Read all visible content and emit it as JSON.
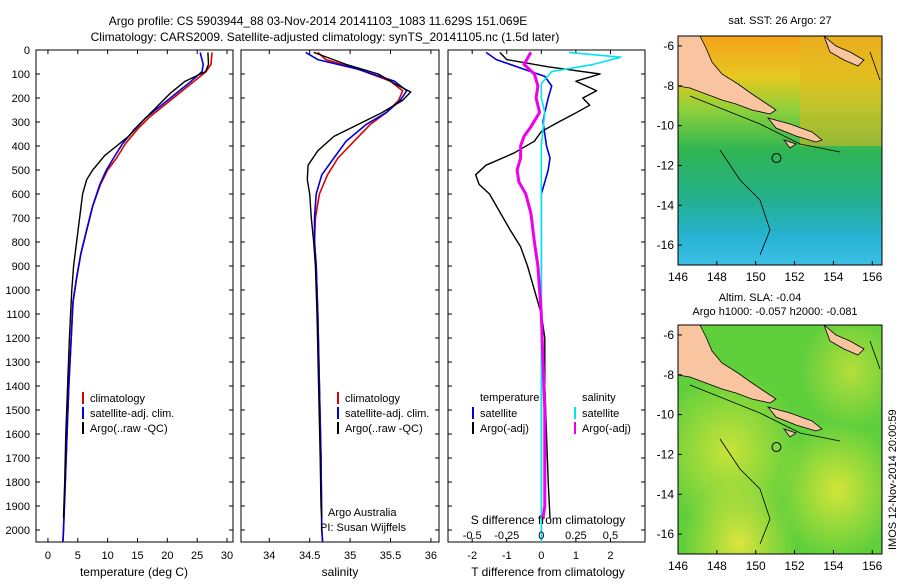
{
  "title": {
    "line1": "Argo profile: CS 5903944_88 03-Nov-2014 20141103_1083 11.629S 151.069E",
    "line2": "Climatology: CARS2009. Satellite-adjusted climatology: synTS_20141105.nc (1.5d later)"
  },
  "colors": {
    "clim": "#dd0000",
    "sat": "#0000dd",
    "argo": "#000000",
    "sal_sat": "#00e5ee",
    "sal_argo": "#ee00ee"
  },
  "depth_axis": {
    "ticks": [
      0,
      100,
      200,
      300,
      400,
      500,
      600,
      700,
      800,
      900,
      1000,
      1100,
      1200,
      1300,
      1400,
      1500,
      1600,
      1700,
      1800,
      1900,
      2000
    ],
    "range": [
      0,
      2050
    ]
  },
  "chart_data": [
    {
      "type": "line",
      "name": "temperature",
      "xlabel": "temperature (deg C)",
      "ylabel": "depth",
      "xlim": [
        -2,
        31
      ],
      "xticks": [
        0,
        5,
        10,
        15,
        20,
        25,
        30
      ],
      "legend": [
        "climatology",
        "satellite-adj. clim.",
        "Argo(..raw -QC)"
      ],
      "series": [
        {
          "name": "climatology",
          "color": "clim",
          "width": 1.6,
          "points": [
            [
              27.5,
              10
            ],
            [
              27.3,
              60
            ],
            [
              26.5,
              90
            ],
            [
              24.5,
              130
            ],
            [
              22,
              180
            ],
            [
              19.5,
              230
            ],
            [
              17,
              280
            ],
            [
              15,
              330
            ],
            [
              13,
              390
            ],
            [
              11.5,
              450
            ],
            [
              10,
              500
            ],
            [
              8.8,
              560
            ],
            [
              7.5,
              650
            ],
            [
              6.5,
              750
            ],
            [
              5.5,
              850
            ],
            [
              4.8,
              950
            ],
            [
              4.2,
              1050
            ],
            [
              3.9,
              1200
            ],
            [
              3.5,
              1400
            ],
            [
              3.2,
              1600
            ],
            [
              2.9,
              1800
            ],
            [
              2.6,
              2000
            ],
            [
              2.5,
              2050
            ]
          ]
        },
        {
          "name": "satellite-adj. clim.",
          "color": "sat",
          "width": 1.6,
          "points": [
            [
              25.5,
              10
            ],
            [
              26,
              60
            ],
            [
              25.8,
              90
            ],
            [
              24,
              130
            ],
            [
              21.5,
              180
            ],
            [
              19,
              230
            ],
            [
              16.5,
              280
            ],
            [
              14.5,
              330
            ],
            [
              12.5,
              390
            ],
            [
              11,
              450
            ],
            [
              9.8,
              500
            ],
            [
              8.7,
              560
            ],
            [
              7.5,
              650
            ],
            [
              6.5,
              750
            ],
            [
              5.5,
              850
            ],
            [
              4.8,
              950
            ],
            [
              4.2,
              1050
            ],
            [
              3.9,
              1200
            ],
            [
              3.5,
              1400
            ],
            [
              3.2,
              1600
            ],
            [
              2.9,
              1800
            ],
            [
              2.6,
              2000
            ],
            [
              2.5,
              2050
            ]
          ]
        },
        {
          "name": "Argo(..raw -QC)",
          "color": "argo",
          "width": 1.4,
          "points": [
            [
              26.8,
              10
            ],
            [
              26.9,
              60
            ],
            [
              26.4,
              90
            ],
            [
              23,
              130
            ],
            [
              20.5,
              180
            ],
            [
              18.5,
              230
            ],
            [
              16.5,
              280
            ],
            [
              15,
              320
            ],
            [
              13.5,
              360
            ],
            [
              11.5,
              400
            ],
            [
              9.5,
              440
            ],
            [
              7.5,
              500
            ],
            [
              6.5,
              540
            ],
            [
              5.8,
              600
            ],
            [
              5.3,
              700
            ],
            [
              4.8,
              800
            ],
            [
              4.3,
              900
            ],
            [
              4,
              1000
            ],
            [
              3.6,
              1200
            ],
            [
              3.3,
              1400
            ],
            [
              3,
              1600
            ],
            [
              2.8,
              1800
            ],
            [
              2.6,
              1950
            ]
          ]
        }
      ]
    },
    {
      "type": "line",
      "name": "salinity",
      "xlabel": "salinity",
      "ylabel": "depth",
      "xlim": [
        33.65,
        36.1
      ],
      "xticks": [
        34,
        34.5,
        35,
        35.5,
        36
      ],
      "legend": [
        "climatology",
        "satellite-adj. clim.",
        "Argo(..raw -QC)"
      ],
      "annotation": [
        "Argo Australia",
        "PI: Susan Wijffels"
      ],
      "series": [
        {
          "name": "climatology",
          "color": "clim",
          "width": 1.6,
          "points": [
            [
              34.6,
              10
            ],
            [
              34.7,
              40
            ],
            [
              35.1,
              80
            ],
            [
              35.5,
              130
            ],
            [
              35.65,
              170
            ],
            [
              35.6,
              210
            ],
            [
              35.45,
              260
            ],
            [
              35.25,
              310
            ],
            [
              35.05,
              380
            ],
            [
              34.85,
              450
            ],
            [
              34.72,
              520
            ],
            [
              34.62,
              600
            ],
            [
              34.57,
              700
            ],
            [
              34.56,
              800
            ],
            [
              34.58,
              900
            ],
            [
              34.6,
              1100
            ],
            [
              34.62,
              1400
            ],
            [
              34.64,
              1700
            ],
            [
              34.65,
              2000
            ],
            [
              34.66,
              2050
            ]
          ]
        },
        {
          "name": "satellite-adj. clim.",
          "color": "sat",
          "width": 1.6,
          "points": [
            [
              34.45,
              10
            ],
            [
              34.6,
              40
            ],
            [
              35.1,
              80
            ],
            [
              35.55,
              130
            ],
            [
              35.7,
              170
            ],
            [
              35.62,
              210
            ],
            [
              35.45,
              260
            ],
            [
              35.2,
              310
            ],
            [
              34.95,
              380
            ],
            [
              34.8,
              450
            ],
            [
              34.65,
              520
            ],
            [
              34.58,
              600
            ],
            [
              34.56,
              700
            ],
            [
              34.56,
              800
            ],
            [
              34.58,
              900
            ],
            [
              34.6,
              1100
            ],
            [
              34.62,
              1400
            ],
            [
              34.64,
              1700
            ],
            [
              34.65,
              2000
            ],
            [
              34.66,
              2050
            ]
          ]
        },
        {
          "name": "Argo(..raw -QC)",
          "color": "argo",
          "width": 1.4,
          "points": [
            [
              34.55,
              10
            ],
            [
              34.95,
              60
            ],
            [
              35.35,
              100
            ],
            [
              35.55,
              140
            ],
            [
              35.75,
              175
            ],
            [
              35.65,
              210
            ],
            [
              35.4,
              260
            ],
            [
              35.1,
              310
            ],
            [
              34.8,
              360
            ],
            [
              34.6,
              420
            ],
            [
              34.48,
              480
            ],
            [
              34.47,
              540
            ],
            [
              34.5,
              600
            ],
            [
              34.52,
              700
            ],
            [
              34.55,
              800
            ],
            [
              34.57,
              900
            ],
            [
              34.59,
              1100
            ],
            [
              34.61,
              1400
            ],
            [
              34.63,
              1700
            ],
            [
              34.64,
              1900
            ],
            [
              34.65,
              1950
            ]
          ]
        }
      ]
    },
    {
      "type": "line",
      "name": "difference from climatology",
      "xlabel": "T difference from climatology",
      "xlabel_top": "S difference from climatology",
      "xlim": [
        -2.7,
        3
      ],
      "xticks": [
        -2,
        -1,
        0,
        1,
        2
      ],
      "s_ticks": [
        {
          "label": "-0.5",
          "t": -2
        },
        {
          "label": "-0.25",
          "t": -1
        },
        {
          "label": "0",
          "t": 0
        },
        {
          "label": "0.25",
          "t": 1
        },
        {
          "label": "0.5",
          "t": 2
        }
      ],
      "legend_temperature": {
        "title": "temperature",
        "items": [
          "satellite",
          "Argo(-adj)"
        ]
      },
      "legend_salinity": {
        "title": "salinity",
        "items": [
          "satellite",
          "Argo(-adj)"
        ]
      },
      "series": [
        {
          "name": "T satellite",
          "color": "sat",
          "width": 1.6,
          "points": [
            [
              -1.6,
              10
            ],
            [
              -1.3,
              40
            ],
            [
              -0.5,
              80
            ],
            [
              0.1,
              110
            ],
            [
              0.3,
              150
            ],
            [
              0.2,
              200
            ],
            [
              0.1,
              260
            ],
            [
              0.05,
              300
            ],
            [
              0.1,
              350
            ],
            [
              0.15,
              400
            ],
            [
              0.25,
              450
            ],
            [
              0.2,
              500
            ],
            [
              0.1,
              550
            ],
            [
              0,
              600
            ],
            [
              0,
              700
            ],
            [
              0,
              1000
            ],
            [
              0,
              1500
            ],
            [
              0,
              2050
            ]
          ]
        },
        {
          "name": "T Argo(-adj)",
          "color": "argo",
          "width": 1.4,
          "points": [
            [
              -1.2,
              10
            ],
            [
              -1,
              40
            ],
            [
              0.2,
              70
            ],
            [
              1.7,
              100
            ],
            [
              1.0,
              130
            ],
            [
              1.6,
              170
            ],
            [
              1.2,
              200
            ],
            [
              1.4,
              230
            ],
            [
              0.9,
              270
            ],
            [
              0.5,
              300
            ],
            [
              0,
              340
            ],
            [
              -0.2,
              380
            ],
            [
              -0.8,
              430
            ],
            [
              -1.6,
              480
            ],
            [
              -1.9,
              520
            ],
            [
              -1.8,
              560
            ],
            [
              -1.5,
              600
            ],
            [
              -1.3,
              650
            ],
            [
              -1.1,
              700
            ],
            [
              -0.9,
              750
            ],
            [
              -0.6,
              820
            ],
            [
              -0.4,
              900
            ],
            [
              -0.2,
              1000
            ],
            [
              0,
              1100
            ],
            [
              0.1,
              1200
            ],
            [
              0.1,
              1400
            ],
            [
              0.15,
              1600
            ],
            [
              0.2,
              1800
            ],
            [
              0.25,
              1950
            ]
          ]
        },
        {
          "name": "S satellite",
          "color": "sal_sat",
          "width": 1.6,
          "points": [
            [
              0.8,
              10
            ],
            [
              2.3,
              30
            ],
            [
              1.5,
              60
            ],
            [
              0.3,
              90
            ],
            [
              0,
              140
            ],
            [
              0,
              200
            ],
            [
              0.1,
              260
            ],
            [
              0.05,
              330
            ],
            [
              0,
              400
            ],
            [
              0,
              600
            ],
            [
              0,
              1000
            ],
            [
              0,
              1500
            ],
            [
              0,
              2050
            ]
          ]
        },
        {
          "name": "S Argo(-adj)",
          "color": "sal_argo",
          "width": 3,
          "points": [
            [
              -0.3,
              10
            ],
            [
              -0.5,
              60
            ],
            [
              -0.2,
              100
            ],
            [
              -0.1,
              150
            ],
            [
              -0.15,
              200
            ],
            [
              -0.05,
              260
            ],
            [
              -0.3,
              320
            ],
            [
              -0.5,
              360
            ],
            [
              -0.6,
              400
            ],
            [
              -0.6,
              450
            ],
            [
              -0.7,
              500
            ],
            [
              -0.65,
              550
            ],
            [
              -0.45,
              600
            ],
            [
              -0.3,
              680
            ],
            [
              -0.2,
              800
            ],
            [
              -0.1,
              900
            ],
            [
              -0.05,
              1000
            ],
            [
              0,
              1100
            ],
            [
              0.05,
              1300
            ],
            [
              0.1,
              1500
            ],
            [
              0.1,
              1700
            ],
            [
              0.1,
              1900
            ],
            [
              0.05,
              1950
            ]
          ]
        }
      ]
    },
    {
      "type": "heatmap",
      "name": "SST map",
      "title": "sat. SST: 26 Argo: 27",
      "xlim": [
        146,
        156.5
      ],
      "ylim": [
        -17,
        -5.5
      ],
      "xticks": [
        146,
        148,
        150,
        152,
        154,
        156
      ],
      "yticks": [
        -6,
        -8,
        -10,
        -12,
        -14,
        -16
      ],
      "marker": {
        "lon": 151.069,
        "lat": -11.629
      }
    },
    {
      "type": "heatmap",
      "name": "SLA map",
      "title": "Altim. SLA: -0.04",
      "subtitle": "Argo h1000: -0.057 h2000: -0.081",
      "xlim": [
        146,
        156.5
      ],
      "ylim": [
        -17,
        -5.5
      ],
      "xticks": [
        146,
        148,
        150,
        152,
        154,
        156
      ],
      "yticks": [
        -6,
        -8,
        -10,
        -12,
        -14,
        -16
      ],
      "marker": {
        "lon": 151.069,
        "lat": -11.629
      }
    }
  ],
  "footer": {
    "stamp": "IMOS 12-Nov-2014 20:00:59"
  }
}
